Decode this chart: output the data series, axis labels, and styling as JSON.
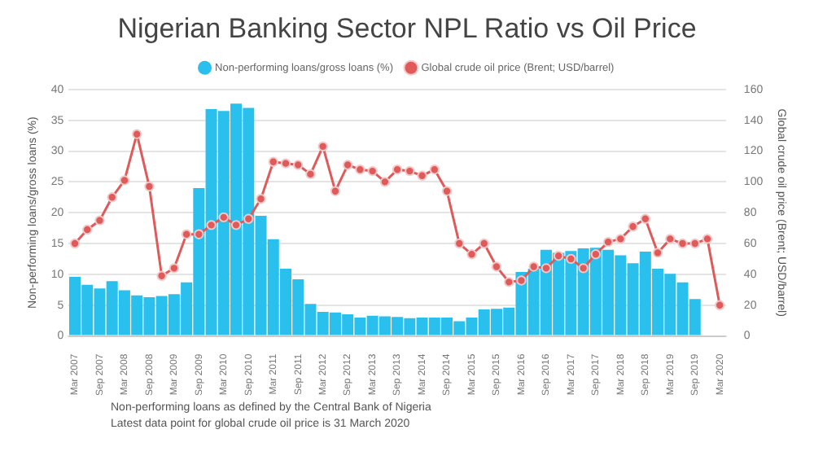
{
  "chart_data": {
    "type": "bar",
    "title": "Nigerian Banking Sector NPL Ratio vs Oil Price",
    "categories": [
      "Mar 2007",
      null,
      "Sep 2007",
      null,
      "Mar 2008",
      null,
      "Sep 2008",
      null,
      "Mar 2009",
      null,
      "Sep 2009",
      null,
      "Mar 2010",
      null,
      "Sep 2010",
      null,
      "Mar 2011",
      null,
      "Sep 2011",
      null,
      "Mar 2012",
      null,
      "Sep 2012",
      null,
      "Mar 2013",
      null,
      "Sep 2013",
      null,
      "Mar 2014",
      null,
      "Sep 2014",
      null,
      "Mar 2015",
      null,
      "Sep 2015",
      null,
      "Mar 2016",
      null,
      "Sep 2016",
      null,
      "Mar 2017",
      null,
      "Sep 2017",
      null,
      "Mar 2018",
      null,
      "Sep 2018",
      null,
      "Mar 2019",
      null,
      "Sep 2019",
      null,
      "Mar 2020"
    ],
    "series": [
      {
        "name": "Non-performing loans/gross loans (%)",
        "color": "#29c0ee",
        "values": [
          9.6,
          8.3,
          7.7,
          8.9,
          7.4,
          6.6,
          6.3,
          6.5,
          6.8,
          8.7,
          24.0,
          36.8,
          36.5,
          37.7,
          37.0,
          19.5,
          15.7,
          10.9,
          9.2,
          5.2,
          3.9,
          3.8,
          3.5,
          3.0,
          3.3,
          3.2,
          3.1,
          2.9,
          3.0,
          3.0,
          3.0,
          2.4,
          3.0,
          4.3,
          4.4,
          4.6,
          10.4,
          10.9,
          14.0,
          13.5,
          13.8,
          14.2,
          14.3,
          14.0,
          13.1,
          11.8,
          13.7,
          10.9,
          10.1,
          8.7,
          6.0,
          null,
          null
        ]
      },
      {
        "name": "Global crude oil price (Brent; USD/barrel)",
        "type": "line",
        "axis": "y2",
        "color": "#e05a5a",
        "marker": "circle",
        "values": [
          60,
          69,
          75,
          90,
          101,
          131,
          97,
          39,
          44,
          66,
          66,
          72,
          77,
          72,
          76,
          89,
          113,
          112,
          111,
          105,
          123,
          94,
          111,
          108,
          107,
          100,
          108,
          107,
          104,
          108,
          94,
          60,
          53,
          60,
          45,
          35,
          36,
          45,
          44,
          52,
          50,
          44,
          53,
          61,
          63,
          71,
          76,
          54,
          63,
          60,
          60,
          63,
          20
        ]
      }
    ],
    "ylabel": "Non-performing loans/gross loans (%)",
    "y2label": "Global crude oil price (Brent; USD/barrel)",
    "ylim": [
      0,
      40
    ],
    "yticks": [
      0,
      5,
      10,
      15,
      20,
      25,
      30,
      35,
      40
    ],
    "y2lim": [
      0,
      160
    ],
    "y2ticks": [
      0,
      20,
      40,
      60,
      80,
      100,
      120,
      140,
      160
    ],
    "grid": "y",
    "legend": "top",
    "annotations": [
      "Non-performing loans as defined by the Central Bank of Nigeria",
      "Latest data point for global crude oil price is 31 March 2020"
    ]
  }
}
